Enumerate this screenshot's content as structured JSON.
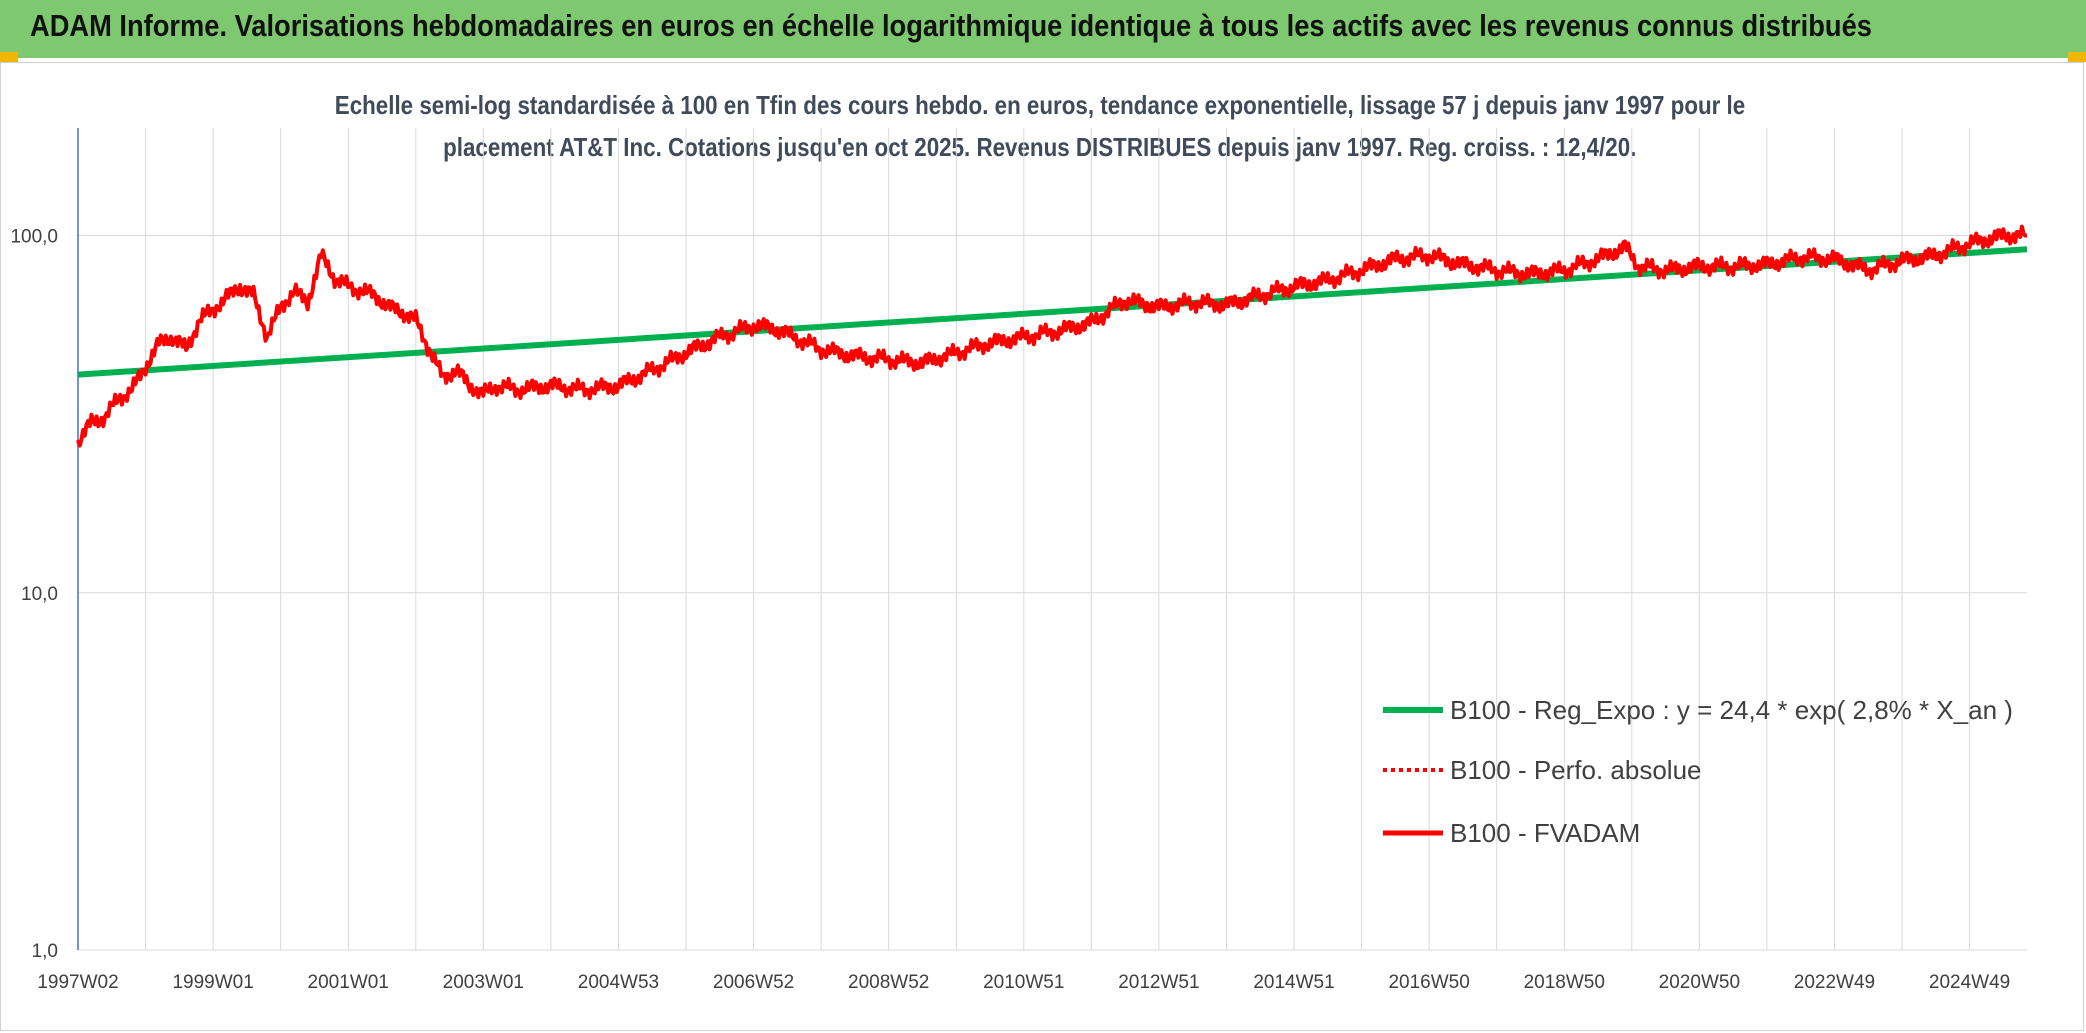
{
  "header": {
    "title": "ADAM Informe. Valorisations hebdomadaires en euros en échelle logarithmique identique à tous les actifs avec les revenus connus distribués"
  },
  "colors": {
    "header_bg": "#7ec86f",
    "trend": "#00b050",
    "series": "#ff0000",
    "grid": "#d9d9d9",
    "axis": "#4472c4"
  },
  "chart_data": {
    "type": "line",
    "title_line1": "Echelle semi-log standardisée à 100 en Tfin des cours hebdo. en euros, tendance exponentielle, lissage 57 j depuis janv 1997 pour le",
    "title_line2": "placement AT&T Inc. Cotations jusqu'en oct 2025. Revenus DISTRIBUES depuis janv 1997. Reg. croiss. : 12,4/20.",
    "y_scale": "log",
    "ylim": [
      1,
      200
    ],
    "y_ticks": [
      {
        "value": 1,
        "label": "1,0"
      },
      {
        "value": 10,
        "label": "10,0"
      },
      {
        "value": 100,
        "label": "100,0"
      }
    ],
    "xlim": [
      1997.0,
      2025.85
    ],
    "x_ticks": [
      {
        "value": 1997.0,
        "label": "1997W02"
      },
      {
        "value": 1999.0,
        "label": "1999W01"
      },
      {
        "value": 2001.0,
        "label": "2001W01"
      },
      {
        "value": 2003.0,
        "label": "2003W01"
      },
      {
        "value": 2005.0,
        "label": "2004W53"
      },
      {
        "value": 2007.0,
        "label": "2006W52"
      },
      {
        "value": 2009.0,
        "label": "2008W52"
      },
      {
        "value": 2011.0,
        "label": "2010W51"
      },
      {
        "value": 2013.0,
        "label": "2012W51"
      },
      {
        "value": 2015.0,
        "label": "2014W51"
      },
      {
        "value": 2017.0,
        "label": "2016W50"
      },
      {
        "value": 2019.0,
        "label": "2018W50"
      },
      {
        "value": 2021.0,
        "label": "2020W50"
      },
      {
        "value": 2023.0,
        "label": "2022W49"
      },
      {
        "value": 2025.0,
        "label": "2024W49"
      }
    ],
    "legend_position": "bottom-right",
    "series": [
      {
        "name": "B100 - Reg_Expo : y = 24,4 * exp( 2,8% *  X_an )",
        "style": "solid-thick",
        "color": "#00b050",
        "x": [
          1997.0,
          2025.85
        ],
        "y": [
          40.8,
          91.5
        ]
      },
      {
        "name": "B100 - Perfo. absolue",
        "style": "dotted",
        "color": "#ff0000",
        "x": [],
        "y": []
      },
      {
        "name": "B100 - FVADAM",
        "style": "solid",
        "color": "#ff0000",
        "x": [
          1997.0,
          1997.2,
          1997.4,
          1997.6,
          1997.8,
          1998.0,
          1998.2,
          1998.4,
          1998.6,
          1998.8,
          1999.0,
          1999.2,
          1999.4,
          1999.6,
          1999.8,
          2000.0,
          2000.2,
          2000.4,
          2000.6,
          2000.8,
          2001.0,
          2001.2,
          2001.4,
          2001.6,
          2001.8,
          2002.0,
          2002.2,
          2002.4,
          2002.6,
          2002.8,
          2003.0,
          2003.2,
          2003.5,
          2004.0,
          2004.5,
          2005.0,
          2005.5,
          2006.0,
          2006.5,
          2007.0,
          2007.3,
          2007.6,
          2008.0,
          2008.5,
          2009.0,
          2009.5,
          2010.0,
          2010.5,
          2011.0,
          2011.5,
          2012.0,
          2012.5,
          2013.0,
          2013.5,
          2014.0,
          2014.5,
          2015.0,
          2015.5,
          2016.0,
          2016.5,
          2017.0,
          2017.5,
          2018.0,
          2018.5,
          2019.0,
          2019.5,
          2019.9,
          2020.1,
          2020.5,
          2021.0,
          2021.5,
          2022.0,
          2022.5,
          2023.0,
          2023.5,
          2024.0,
          2024.5,
          2025.0,
          2025.5,
          2025.85
        ],
        "y": [
          26.5,
          30,
          31,
          35,
          37,
          43,
          50,
          52,
          48,
          58,
          62,
          67,
          72,
          68,
          52,
          63,
          70,
          65,
          88,
          76,
          72,
          70,
          68,
          63,
          61,
          58,
          48,
          40,
          42,
          38,
          36,
          38,
          37,
          38,
          37,
          38,
          42,
          47,
          52,
          56,
          55,
          52,
          48,
          46,
          45,
          44,
          47,
          50,
          52,
          54,
          57,
          66,
          63,
          65,
          64,
          68,
          72,
          75,
          80,
          86,
          88,
          83,
          80,
          78,
          80,
          86,
          93,
          82,
          80,
          82,
          82,
          83,
          87,
          86,
          80,
          85,
          88,
          95,
          100,
          100
        ]
      }
    ]
  }
}
